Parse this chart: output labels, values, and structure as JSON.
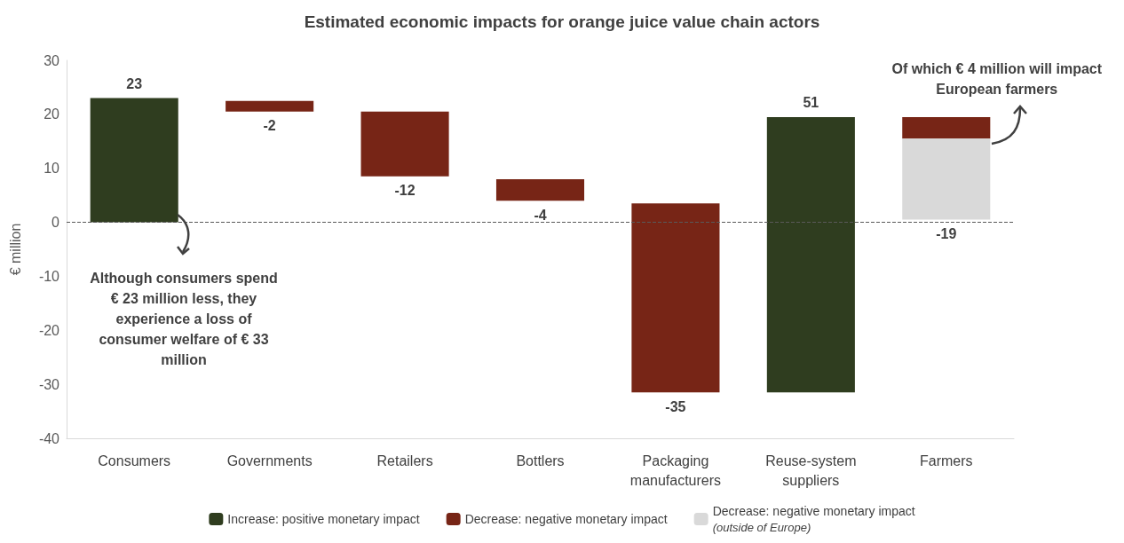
{
  "chart_data": {
    "type": "bar",
    "title": "Estimated economic impacts for orange juice value chain actors",
    "ylabel": "€ million",
    "categories": [
      "Consumers",
      "Governments",
      "Retailers",
      "Bottlers",
      "Packaging\nmanufacturers",
      "Reuse-system\nsuppliers",
      "Farmers"
    ],
    "series": [
      {
        "name": "Increase: positive monetary impact",
        "color": "#2f3d1f",
        "values": [
          23,
          null,
          null,
          null,
          null,
          51,
          null
        ],
        "base": [
          0,
          null,
          null,
          null,
          null,
          -31.5,
          null
        ],
        "value_labels": [
          "23",
          null,
          null,
          null,
          null,
          "51",
          null
        ]
      },
      {
        "name": "Decrease: negative monetary impact",
        "color": "#772516",
        "values": [
          null,
          -2,
          -12,
          -4,
          -35,
          null,
          -4
        ],
        "base": [
          null,
          22.5,
          20.5,
          8,
          3.5,
          null,
          19.5
        ],
        "value_labels": [
          null,
          "-2",
          "-12",
          "-4",
          "-35",
          null,
          null
        ]
      },
      {
        "name": "Decrease: negative monetary impact\n(outside of Europe)",
        "color": "#d9d9d9",
        "values": [
          null,
          null,
          null,
          null,
          null,
          null,
          -15
        ],
        "base": [
          null,
          null,
          null,
          null,
          null,
          null,
          15.5
        ],
        "value_labels": [
          null,
          null,
          null,
          null,
          null,
          null,
          null
        ]
      }
    ],
    "totals": [
      null,
      null,
      null,
      null,
      null,
      null,
      "-19"
    ],
    "ylim": [
      -40,
      30
    ],
    "yticks": [
      -40,
      -30,
      -20,
      -10,
      0,
      10,
      20,
      30
    ],
    "ref_lines": [
      {
        "axis": "y",
        "value": 0,
        "color": "#595959",
        "line_style": "dashed"
      }
    ],
    "annotations": [
      "Although consumers spend\n€ 23 million less, they\nexperience a loss of\nconsumer welfare of € 33\nmillion",
      {
        "text": "Of which € 4 million will impact\nEuropean farmers",
        "x": "Farmers",
        "y": 15.5
      }
    ],
    "grid": false,
    "legend": "bottom"
  }
}
